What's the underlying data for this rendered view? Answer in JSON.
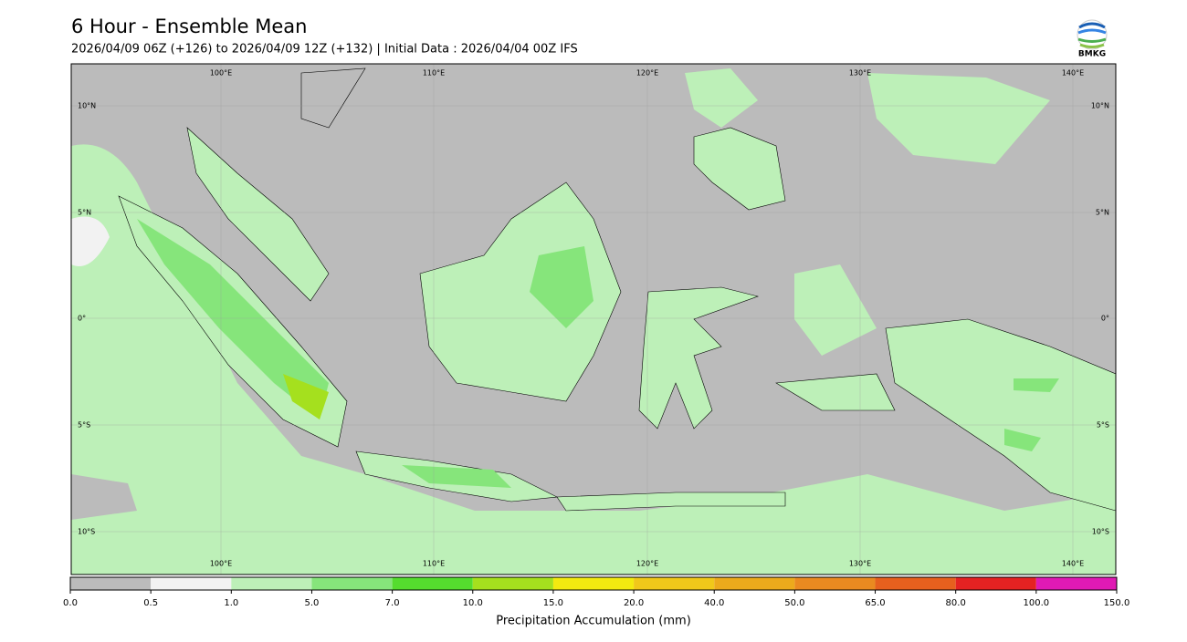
{
  "header": {
    "title": "6 Hour - Ensemble Mean",
    "subtitle": "2026/04/09 06Z (+126) to 2026/04/09 12Z (+132) | Initial Data : 2026/04/04 00Z IFS",
    "logo_text": "BMKG"
  },
  "map": {
    "lon_labels": [
      "100°E",
      "110°E",
      "120°E",
      "130°E",
      "140°E"
    ],
    "lat_labels": [
      "10°N",
      "5°N",
      "0°",
      "5°S",
      "10°S"
    ],
    "colorbar": {
      "label": "Precipitation Accumulation (mm)",
      "ticks": [
        {
          "value": 0,
          "label": "0.0"
        },
        {
          "value": 0.5,
          "label": "0.5"
        },
        {
          "value": 1,
          "label": "1.0"
        },
        {
          "value": 5,
          "label": "5.0"
        },
        {
          "value": 7,
          "label": "7.0"
        },
        {
          "value": 10,
          "label": "10.0"
        },
        {
          "value": 15,
          "label": "15.0"
        },
        {
          "value": 20,
          "label": "20.0"
        },
        {
          "value": 40,
          "label": "40.0"
        },
        {
          "value": 50,
          "label": "50.0"
        },
        {
          "value": 65,
          "label": "65.0"
        },
        {
          "value": 80,
          "label": "80.0"
        },
        {
          "value": 100,
          "label": "100.0"
        },
        {
          "value": 150,
          "label": "150.0"
        }
      ],
      "colors": [
        "#bbbbbb",
        "#f2f2f2",
        "#bdf0b8",
        "#86e57b",
        "#55dd2e",
        "#a5e01e",
        "#f2ea10",
        "#f0c81a",
        "#ecaa1c",
        "#ea8a20",
        "#e6601e",
        "#e42222",
        "#e01ab4"
      ]
    }
  }
}
